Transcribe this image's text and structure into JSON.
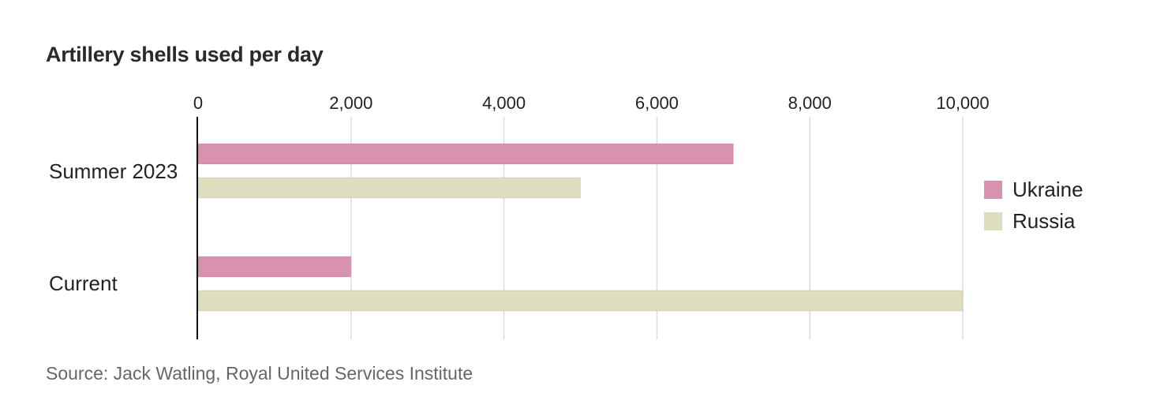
{
  "chart_data": {
    "type": "bar",
    "orientation": "horizontal",
    "title": "Artillery shells used per day",
    "source": "Source: Jack Watling, Royal United Services Institute",
    "categories": [
      "Summer 2023",
      "Current"
    ],
    "series": [
      {
        "name": "Ukraine",
        "color": "#d991b0",
        "values": [
          7000,
          2000
        ]
      },
      {
        "name": "Russia",
        "color": "#deddbd",
        "values": [
          5000,
          10000
        ]
      }
    ],
    "x_ticks": [
      0,
      2000,
      4000,
      6000,
      8000,
      10000
    ],
    "x_tick_labels": [
      "0",
      "2,000",
      "4,000",
      "6,000",
      "8,000",
      "10,000"
    ],
    "xlim": [
      0,
      10000
    ],
    "grid": true,
    "legend_position": "right"
  }
}
